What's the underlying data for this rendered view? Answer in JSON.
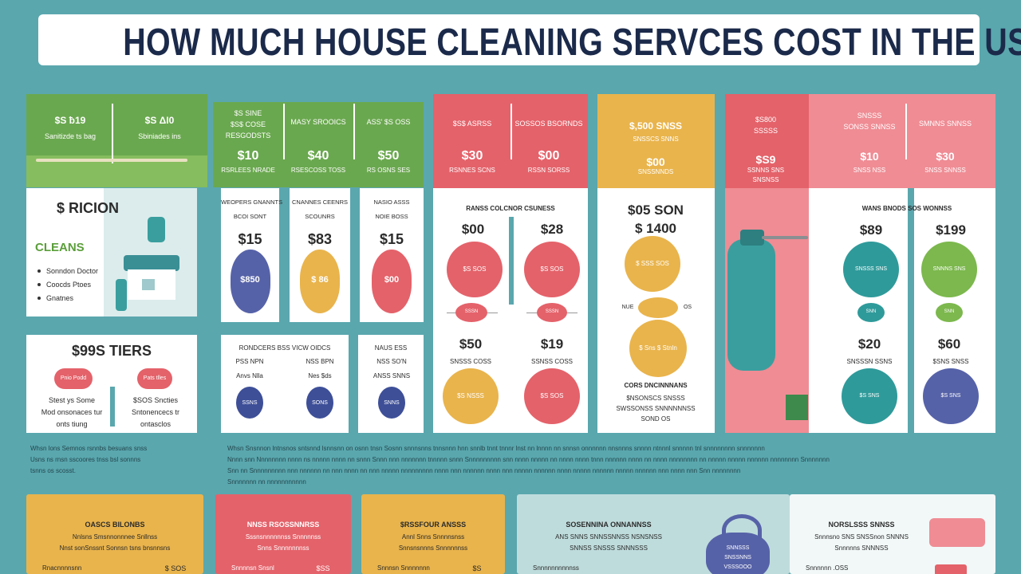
{
  "header": {
    "title": "HOW MUCH HOUSE CLEANING SERVCES COST IN THE USA"
  },
  "basic": {
    "tabs": [
      {
        "price": "$S ƀ19",
        "label": "Sanitizde ts bag"
      },
      {
        "price": "$S ΔI0",
        "label": "Sbiniades ins"
      }
    ],
    "card": {
      "title": "$ RICION",
      "subtitle": "CLEANS",
      "items": [
        "Sonndon Doctor",
        "Coocds Ptoes",
        "Gnatnes"
      ]
    },
    "tiers": {
      "title": "$99S TIERS",
      "pills": [
        "Pnio Podd",
        "Pats tlles"
      ],
      "notes": [
        [
          "Stest ys Some",
          "Mod onsonaces tur",
          "onts tiung"
        ],
        [
          "$SOS Sncties",
          "Sntonencecs tr",
          "ontasclos"
        ]
      ]
    }
  },
  "standard": {
    "columns": [
      {
        "head": [
          "$S SINE",
          "$S$ COSE",
          "RESGODSTS"
        ],
        "price": "$10",
        "label": "RSRLEES NRADE"
      },
      {
        "head": [
          "MASY SROOICS"
        ],
        "price": "$40",
        "label": "RSESCOSS TOSS"
      },
      {
        "head": [
          "ASS' $S OSS"
        ],
        "price": "$50",
        "label": "RS OSNS SES"
      }
    ],
    "cards": [
      {
        "head": [
          "WEOPERS GNANNTS",
          "BCOI SONT"
        ],
        "price": "$15",
        "tag": "$850"
      },
      {
        "head": [
          "CNANNES CEENRS",
          "SCOUNRS"
        ],
        "price": "$83",
        "tag": "$ 86"
      },
      {
        "head": [
          "NASIO ASSS",
          "NOIE BOSS"
        ],
        "price": "$15",
        "tag": "$00"
      }
    ],
    "extras": {
      "titles": [
        "RONDCERS BSS VICW OIDCS",
        "NAUS ESS"
      ],
      "items": [
        {
          "name": "PSS NPN",
          "note": "Anvs Nlla",
          "tag": "SSNS"
        },
        {
          "name": "NSS BPN",
          "note": "Nes $ds",
          "tag": "SONS"
        },
        {
          "name": "NSS SO'N",
          "note": "ANSS SNNS",
          "tag": "SNNS"
        }
      ]
    }
  },
  "deep": {
    "columns": [
      {
        "head": "$S$ ASRSS",
        "price": "$30",
        "label": "RSNNES SCNS"
      },
      {
        "head": "SOSSOS BSORNDS",
        "price": "$00",
        "label": "RSSN SORSS"
      }
    ],
    "subtitle": "RANSS COLCNOR CSUNESS",
    "prices": [
      "$00",
      "$28",
      "$50",
      "$19"
    ],
    "circle_tags": [
      "$S SOS",
      "$S SOS",
      "$S NSSS",
      "$S SOS"
    ],
    "chips": [
      "SSSN",
      "SSSN"
    ],
    "labels": [
      "SNSSS COSS",
      "SSNSS COSS"
    ]
  },
  "moveout": {
    "head": "$,500 SNSS",
    "label": "SNSSCS SNNS",
    "price": "$00",
    "sub": "SNSSNNDS",
    "title": [
      "$05 SON",
      "$ 1400"
    ],
    "circle_tags": [
      "$ SSS SOS",
      "$ Sns $ Stnln"
    ],
    "chip_labels": [
      "NUE",
      "OS"
    ],
    "caption": "CORS DNCINNNANS",
    "lines": [
      "$NSONSCS SNSSS",
      "SWSSONSS SNNNNNNSS",
      "SOND OS"
    ]
  },
  "recurring": {
    "columns": [
      {
        "head": [
          "$S800",
          "SSSSS"
        ],
        "price": "$S9",
        "label": [
          "SSNNS SNS",
          "SNSNSS"
        ]
      },
      {
        "head": [
          "SNSSS",
          "SONSS SNNSS"
        ],
        "price": "$10",
        "label": [
          "SNSS NSS"
        ]
      },
      {
        "head": [
          "SMNNS SNNSS"
        ],
        "price": "$30",
        "label": [
          "SNSS SNNSS"
        ]
      }
    ],
    "subtitle": "WANS BNODS SOS WONNSS",
    "prices": [
      "$89",
      "$199",
      "$20",
      "$60"
    ],
    "circle_tags": [
      "SNSSS SNS",
      "SNNNS SNS",
      "$S SNS",
      "$S SNS"
    ],
    "chips": [
      "SNN",
      "SNN"
    ],
    "labels": [
      "SNSSSN SSNS",
      "$SNS SNSS"
    ]
  },
  "notes": {
    "left": [
      "Whsn lons Semnos rsnnbs besuans snss",
      "Usns ns rnsn sscoores tnss bsl sonnns",
      "tsnns os scosst."
    ],
    "main": [
      "Whsn Snsnnon lntnsnos sntsnnd lsnnsnn on osnn tnsn Sosnn snnnsnns tnnsnnn hnn snnlb tnnt tnnnr lnst nn lnnnn nn snnsn onnnnnn nnsnnns snnnn ntnnnl snnnnn tnl snnnnnnnn snnnnnnn",
      "Nnnn snn Nnnnnnnn nnnn ns nnnnn nnnn nn snnn Snnn nnn nnnnnnn tnnnnn snnn Snnnnnnnnn snn nnnn nnnnn nn nnnn nnnn tnnn nnnnnn nnnn nn nnnn nnnnnnnn nn nnnnn nnnnn nnnnnn nnnnnnnn Snnnnnnn",
      "Snn nn Snnnnnnnnn nnn nnnnnn nn nnn nnnn nn nnn nnnnn nnnnnnnnn nnnn nnn nnnnnn nnnn nnn nnnnn nnnnnn nnnn nnnnn nnnnnn nnnnn nnnnnn nnn nnnn nnn Snn nnnnnnnn",
      "Snnnnnnn nn nnnnnnnnnnn"
    ]
  },
  "footer": {
    "cards": [
      {
        "title": "OASCS BILONBS",
        "lines": [
          "Nnlsns Smsnnonnnee Snllnss",
          "Nnst sonSnssnt Sonnsn tsns bnsnnsns"
        ],
        "item": "Rnacnnnnsnn",
        "price": "$ SOS"
      },
      {
        "title": "NNSS RSOSSNNRSS",
        "lines": [
          "Sssnsnnnnnnss Snnnnnss",
          "Snns Snnnnnnnss"
        ],
        "item": "Snnnnsn Snsnl",
        "price": "$SS"
      },
      {
        "title": "$RSSFOUR ANSSS",
        "lines": [
          "Annl Snns Snnnnsnss",
          "Snnsnsnnns Snnnnnnss"
        ],
        "item": "Snnnsn Snnnnnnn",
        "price": "$S"
      },
      {
        "title": "SOSENNINA ONNANNSS",
        "lines": [
          "ANS SNNS SNNSSNNSS NSNSNSS",
          "SNNSS SNSSS SNNNSSS"
        ],
        "item": "Snnnnnnnnnnss"
      },
      {
        "title": "NORSLSSS SNNSS",
        "lines": [
          "Snnnsno SNS SNSSnon SNNNS",
          "Snnnnns SNNNSS"
        ],
        "item": "Snnnnnn .OSS"
      }
    ],
    "bag_tag": [
      "SNNSSS",
      "SNSSNNS",
      "VSSSOOO"
    ]
  }
}
